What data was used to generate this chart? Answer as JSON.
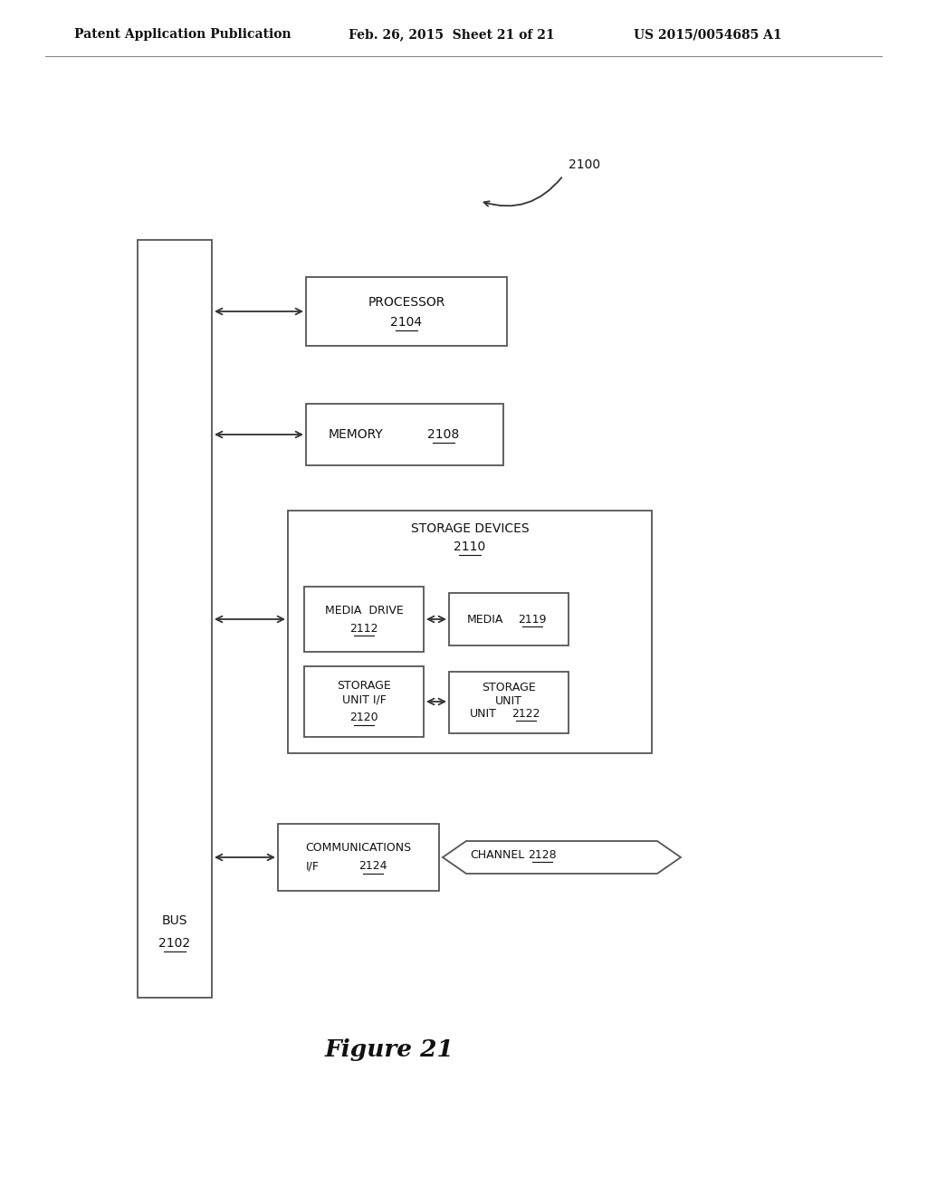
{
  "header_left": "Patent Application Publication",
  "header_mid": "Feb. 26, 2015  Sheet 21 of 21",
  "header_right": "US 2015/0054685 A1",
  "figure_label": "Figure 21",
  "label_2100": "2100",
  "bus_label": "BUS",
  "bus_num": "2102",
  "processor_label": "PROCESSOR",
  "processor_num": "2104",
  "memory_label": "MEMORY",
  "memory_num": "2108",
  "storage_devices_label": "STORAGE DEVICES",
  "storage_devices_num": "2110",
  "media_drive_label": "MEDIA  DRIVE",
  "media_drive_num": "2112",
  "media_label": "MEDIA",
  "media_num": "2119",
  "storage_unit_if_label": "STORAGE\nUNIT I/F",
  "storage_unit_if_num": "2120",
  "storage_unit_label": "STORAGE\nUNIT",
  "storage_unit_num": "2122",
  "comms_line1": "COMMUNICATIONS",
  "comms_line2": "I/F",
  "comms_num": "2124",
  "channel_label": "CHANNEL",
  "channel_num": "2128",
  "bg_color": "#ffffff",
  "box_edge_color": "#555555",
  "text_color": "#111111",
  "arrow_color": "#333333"
}
